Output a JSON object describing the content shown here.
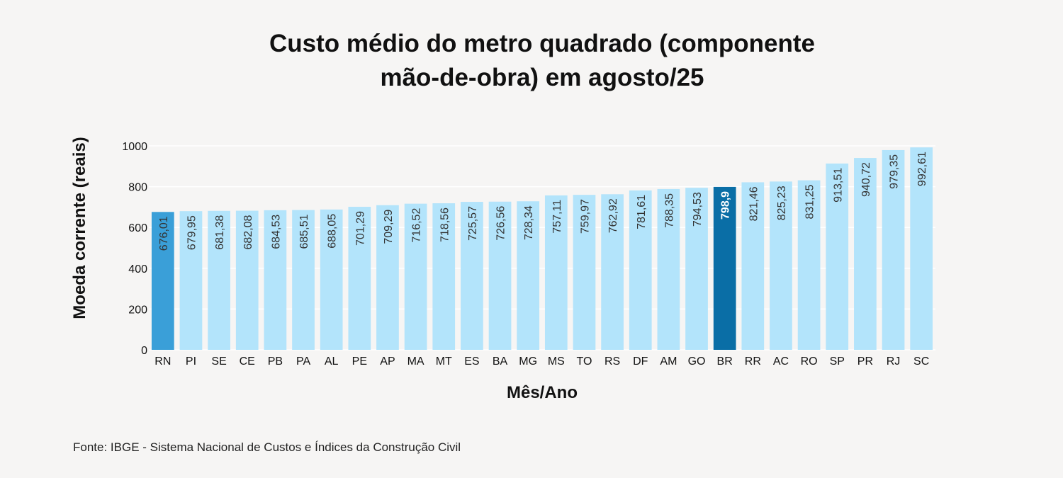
{
  "chart_data": {
    "type": "bar",
    "title_lines": [
      "Custo médio do metro quadrado (componente",
      "mão-de-obra) em agosto/25"
    ],
    "xlabel": "Mês/Ano",
    "ylabel": "Moeda corrente (reais)",
    "ylim": [
      0,
      1000
    ],
    "yticks": [
      0,
      200,
      400,
      600,
      800,
      1000
    ],
    "grid": true,
    "categories": [
      "RN",
      "PI",
      "SE",
      "CE",
      "PB",
      "PA",
      "AL",
      "PE",
      "AP",
      "MA",
      "MT",
      "ES",
      "BA",
      "MG",
      "MS",
      "TO",
      "RS",
      "DF",
      "AM",
      "GO",
      "BR",
      "RR",
      "AC",
      "RO",
      "SP",
      "PR",
      "RJ",
      "SC"
    ],
    "values": [
      676.01,
      679.95,
      681.38,
      682.08,
      684.53,
      685.51,
      688.05,
      701.29,
      709.29,
      716.52,
      718.56,
      725.57,
      726.56,
      728.34,
      757.11,
      759.97,
      762.92,
      781.61,
      788.35,
      794.53,
      798.9,
      821.46,
      825.23,
      831.25,
      913.51,
      940.72,
      979.35,
      992.61
    ],
    "value_labels": [
      "676,01",
      "679,95",
      "681,38",
      "682,08",
      "684,53",
      "685,51",
      "688,05",
      "701,29",
      "709,29",
      "716,52",
      "718,56",
      "725,57",
      "726,56",
      "728,34",
      "757,11",
      "759,97",
      "762,92",
      "781,61",
      "788,35",
      "794,53",
      "798,9",
      "821,46",
      "825,23",
      "831,25",
      "913,51",
      "940,72",
      "979,35",
      "992,61"
    ],
    "colors": {
      "default": "#b3e4fb",
      "lowest": "#3a9fd8",
      "national": "#0a6ea6",
      "grid": "#ffffff"
    },
    "highlight_lowest": "RN",
    "highlight_national": "BR"
  },
  "source": "Fonte: IBGE - Sistema Nacional de Custos e Índices da Construção Civil"
}
